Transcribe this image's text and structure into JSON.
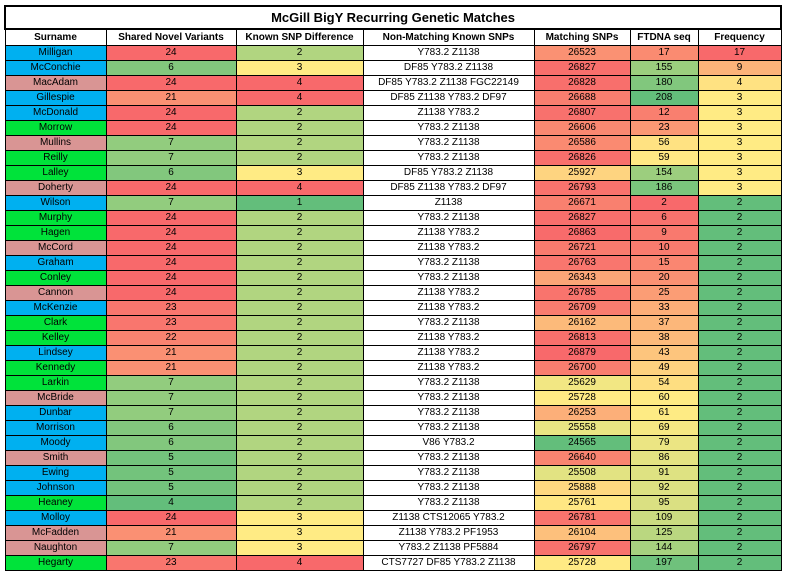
{
  "title": "McGill BigY Recurring Genetic Matches",
  "headers": [
    "Surname",
    "Shared Novel Variants",
    "Known SNP Difference",
    "Non-Matching Known SNPs",
    "Matching SNPs",
    "FTDNA seq",
    "Frequency"
  ],
  "colors": {
    "surname_blue": "#00b0f0",
    "surname_green": "#00e33a",
    "surname_pink": "#d99594",
    "scale_red": "#f8696b",
    "scale_yellow": "#ffeb84",
    "scale_green": "#63be7b"
  },
  "rows": [
    {
      "surname": "Milligan",
      "sc": "blue",
      "snv": "24",
      "ksd": "2",
      "nmk": "Y783.2 Z1138",
      "ms": "26523",
      "seq": "17",
      "freq": "17"
    },
    {
      "surname": "McConchie",
      "sc": "blue",
      "snv": "6",
      "ksd": "3",
      "nmk": "DF85 Y783.2 Z1138",
      "ms": "26827",
      "seq": "155",
      "freq": "9"
    },
    {
      "surname": "MacAdam",
      "sc": "pink",
      "snv": "24",
      "ksd": "4",
      "nmk": "DF85 Y783.2 Z1138 FGC22149",
      "ms": "26828",
      "seq": "180",
      "freq": "4"
    },
    {
      "surname": "Gillespie",
      "sc": "blue",
      "snv": "21",
      "ksd": "4",
      "nmk": "DF85 Z1138 Y783.2 DF97",
      "ms": "26688",
      "seq": "208",
      "freq": "3"
    },
    {
      "surname": "McDonald",
      "sc": "blue",
      "snv": "24",
      "ksd": "2",
      "nmk": "Z1138 Y783.2",
      "ms": "26807",
      "seq": "12",
      "freq": "3"
    },
    {
      "surname": "Morrow",
      "sc": "green",
      "snv": "24",
      "ksd": "2",
      "nmk": "Y783.2 Z1138",
      "ms": "26606",
      "seq": "23",
      "freq": "3"
    },
    {
      "surname": "Mullins",
      "sc": "pink",
      "snv": "7",
      "ksd": "2",
      "nmk": "Y783.2 Z1138",
      "ms": "26586",
      "seq": "56",
      "freq": "3"
    },
    {
      "surname": "Reilly",
      "sc": "green",
      "snv": "7",
      "ksd": "2",
      "nmk": "Y783.2 Z1138",
      "ms": "26826",
      "seq": "59",
      "freq": "3"
    },
    {
      "surname": "Lalley",
      "sc": "green",
      "snv": "6",
      "ksd": "3",
      "nmk": "DF85 Y783.2 Z1138",
      "ms": "25927",
      "seq": "154",
      "freq": "3"
    },
    {
      "surname": "Doherty",
      "sc": "pink",
      "snv": "24",
      "ksd": "4",
      "nmk": "DF85 Z1138 Y783.2 DF97",
      "ms": "26793",
      "seq": "186",
      "freq": "3"
    },
    {
      "surname": "Wilson",
      "sc": "blue",
      "snv": "7",
      "ksd": "1",
      "nmk": "Z1138",
      "ms": "26671",
      "seq": "2",
      "freq": "2"
    },
    {
      "surname": "Murphy",
      "sc": "green",
      "snv": "24",
      "ksd": "2",
      "nmk": "Y783.2 Z1138",
      "ms": "26827",
      "seq": "6",
      "freq": "2"
    },
    {
      "surname": "Hagen",
      "sc": "green",
      "snv": "24",
      "ksd": "2",
      "nmk": "Z1138 Y783.2",
      "ms": "26863",
      "seq": "9",
      "freq": "2"
    },
    {
      "surname": "McCord",
      "sc": "pink",
      "snv": "24",
      "ksd": "2",
      "nmk": "Z1138 Y783.2",
      "ms": "26721",
      "seq": "10",
      "freq": "2"
    },
    {
      "surname": "Graham",
      "sc": "blue",
      "snv": "24",
      "ksd": "2",
      "nmk": "Y783.2 Z1138",
      "ms": "26763",
      "seq": "15",
      "freq": "2"
    },
    {
      "surname": "Conley",
      "sc": "green",
      "snv": "24",
      "ksd": "2",
      "nmk": "Y783.2 Z1138",
      "ms": "26343",
      "seq": "20",
      "freq": "2"
    },
    {
      "surname": "Cannon",
      "sc": "pink",
      "snv": "24",
      "ksd": "2",
      "nmk": "Z1138 Y783.2",
      "ms": "26785",
      "seq": "25",
      "freq": "2"
    },
    {
      "surname": "McKenzie",
      "sc": "blue",
      "snv": "23",
      "ksd": "2",
      "nmk": "Z1138 Y783.2",
      "ms": "26709",
      "seq": "33",
      "freq": "2"
    },
    {
      "surname": "Clark",
      "sc": "green",
      "snv": "23",
      "ksd": "2",
      "nmk": "Y783.2 Z1138",
      "ms": "26162",
      "seq": "37",
      "freq": "2"
    },
    {
      "surname": "Kelley",
      "sc": "green",
      "snv": "22",
      "ksd": "2",
      "nmk": "Z1138 Y783.2",
      "ms": "26813",
      "seq": "38",
      "freq": "2"
    },
    {
      "surname": "Lindsey",
      "sc": "blue",
      "snv": "21",
      "ksd": "2",
      "nmk": "Z1138 Y783.2",
      "ms": "26879",
      "seq": "43",
      "freq": "2"
    },
    {
      "surname": "Kennedy",
      "sc": "green",
      "snv": "21",
      "ksd": "2",
      "nmk": "Z1138 Y783.2",
      "ms": "26700",
      "seq": "49",
      "freq": "2"
    },
    {
      "surname": "Larkin",
      "sc": "green",
      "snv": "7",
      "ksd": "2",
      "nmk": "Y783.2 Z1138",
      "ms": "25629",
      "seq": "54",
      "freq": "2"
    },
    {
      "surname": "McBride",
      "sc": "pink",
      "snv": "7",
      "ksd": "2",
      "nmk": "Y783.2 Z1138",
      "ms": "25728",
      "seq": "60",
      "freq": "2"
    },
    {
      "surname": "Dunbar",
      "sc": "blue",
      "snv": "7",
      "ksd": "2",
      "nmk": "Y783.2 Z1138",
      "ms": "26253",
      "seq": "61",
      "freq": "2"
    },
    {
      "surname": "Morrison",
      "sc": "blue",
      "snv": "6",
      "ksd": "2",
      "nmk": "Y783.2 Z1138",
      "ms": "25558",
      "seq": "69",
      "freq": "2"
    },
    {
      "surname": "Moody",
      "sc": "blue",
      "snv": "6",
      "ksd": "2",
      "nmk": "V86 Y783.2",
      "ms": "24565",
      "seq": "79",
      "freq": "2"
    },
    {
      "surname": "Smith",
      "sc": "pink",
      "snv": "5",
      "ksd": "2",
      "nmk": "Y783.2 Z1138",
      "ms": "26640",
      "seq": "86",
      "freq": "2"
    },
    {
      "surname": "Ewing",
      "sc": "blue",
      "snv": "5",
      "ksd": "2",
      "nmk": "Y783.2 Z1138",
      "ms": "25508",
      "seq": "91",
      "freq": "2"
    },
    {
      "surname": "Johnson",
      "sc": "blue",
      "snv": "5",
      "ksd": "2",
      "nmk": "Y783.2 Z1138",
      "ms": "25888",
      "seq": "92",
      "freq": "2"
    },
    {
      "surname": "Heaney",
      "sc": "green",
      "snv": "4",
      "ksd": "2",
      "nmk": "Y783.2 Z1138",
      "ms": "25761",
      "seq": "95",
      "freq": "2"
    },
    {
      "surname": "Molloy",
      "sc": "blue",
      "snv": "24",
      "ksd": "3",
      "nmk": "Z1138 CTS12065 Y783.2",
      "ms": "26781",
      "seq": "109",
      "freq": "2"
    },
    {
      "surname": "McFadden",
      "sc": "pink",
      "snv": "21",
      "ksd": "3",
      "nmk": "Z1138 Y783.2 PF1953",
      "ms": "26104",
      "seq": "125",
      "freq": "2"
    },
    {
      "surname": "Naughton",
      "sc": "pink",
      "snv": "7",
      "ksd": "3",
      "nmk": "Y783.2 Z1138 PF5884",
      "ms": "26797",
      "seq": "144",
      "freq": "2"
    },
    {
      "surname": "Hegarty",
      "sc": "green",
      "snv": "23",
      "ksd": "4",
      "nmk": "CTS7727 DF85 Y783.2 Z1138",
      "ms": "25728",
      "seq": "197",
      "freq": "2"
    }
  ]
}
